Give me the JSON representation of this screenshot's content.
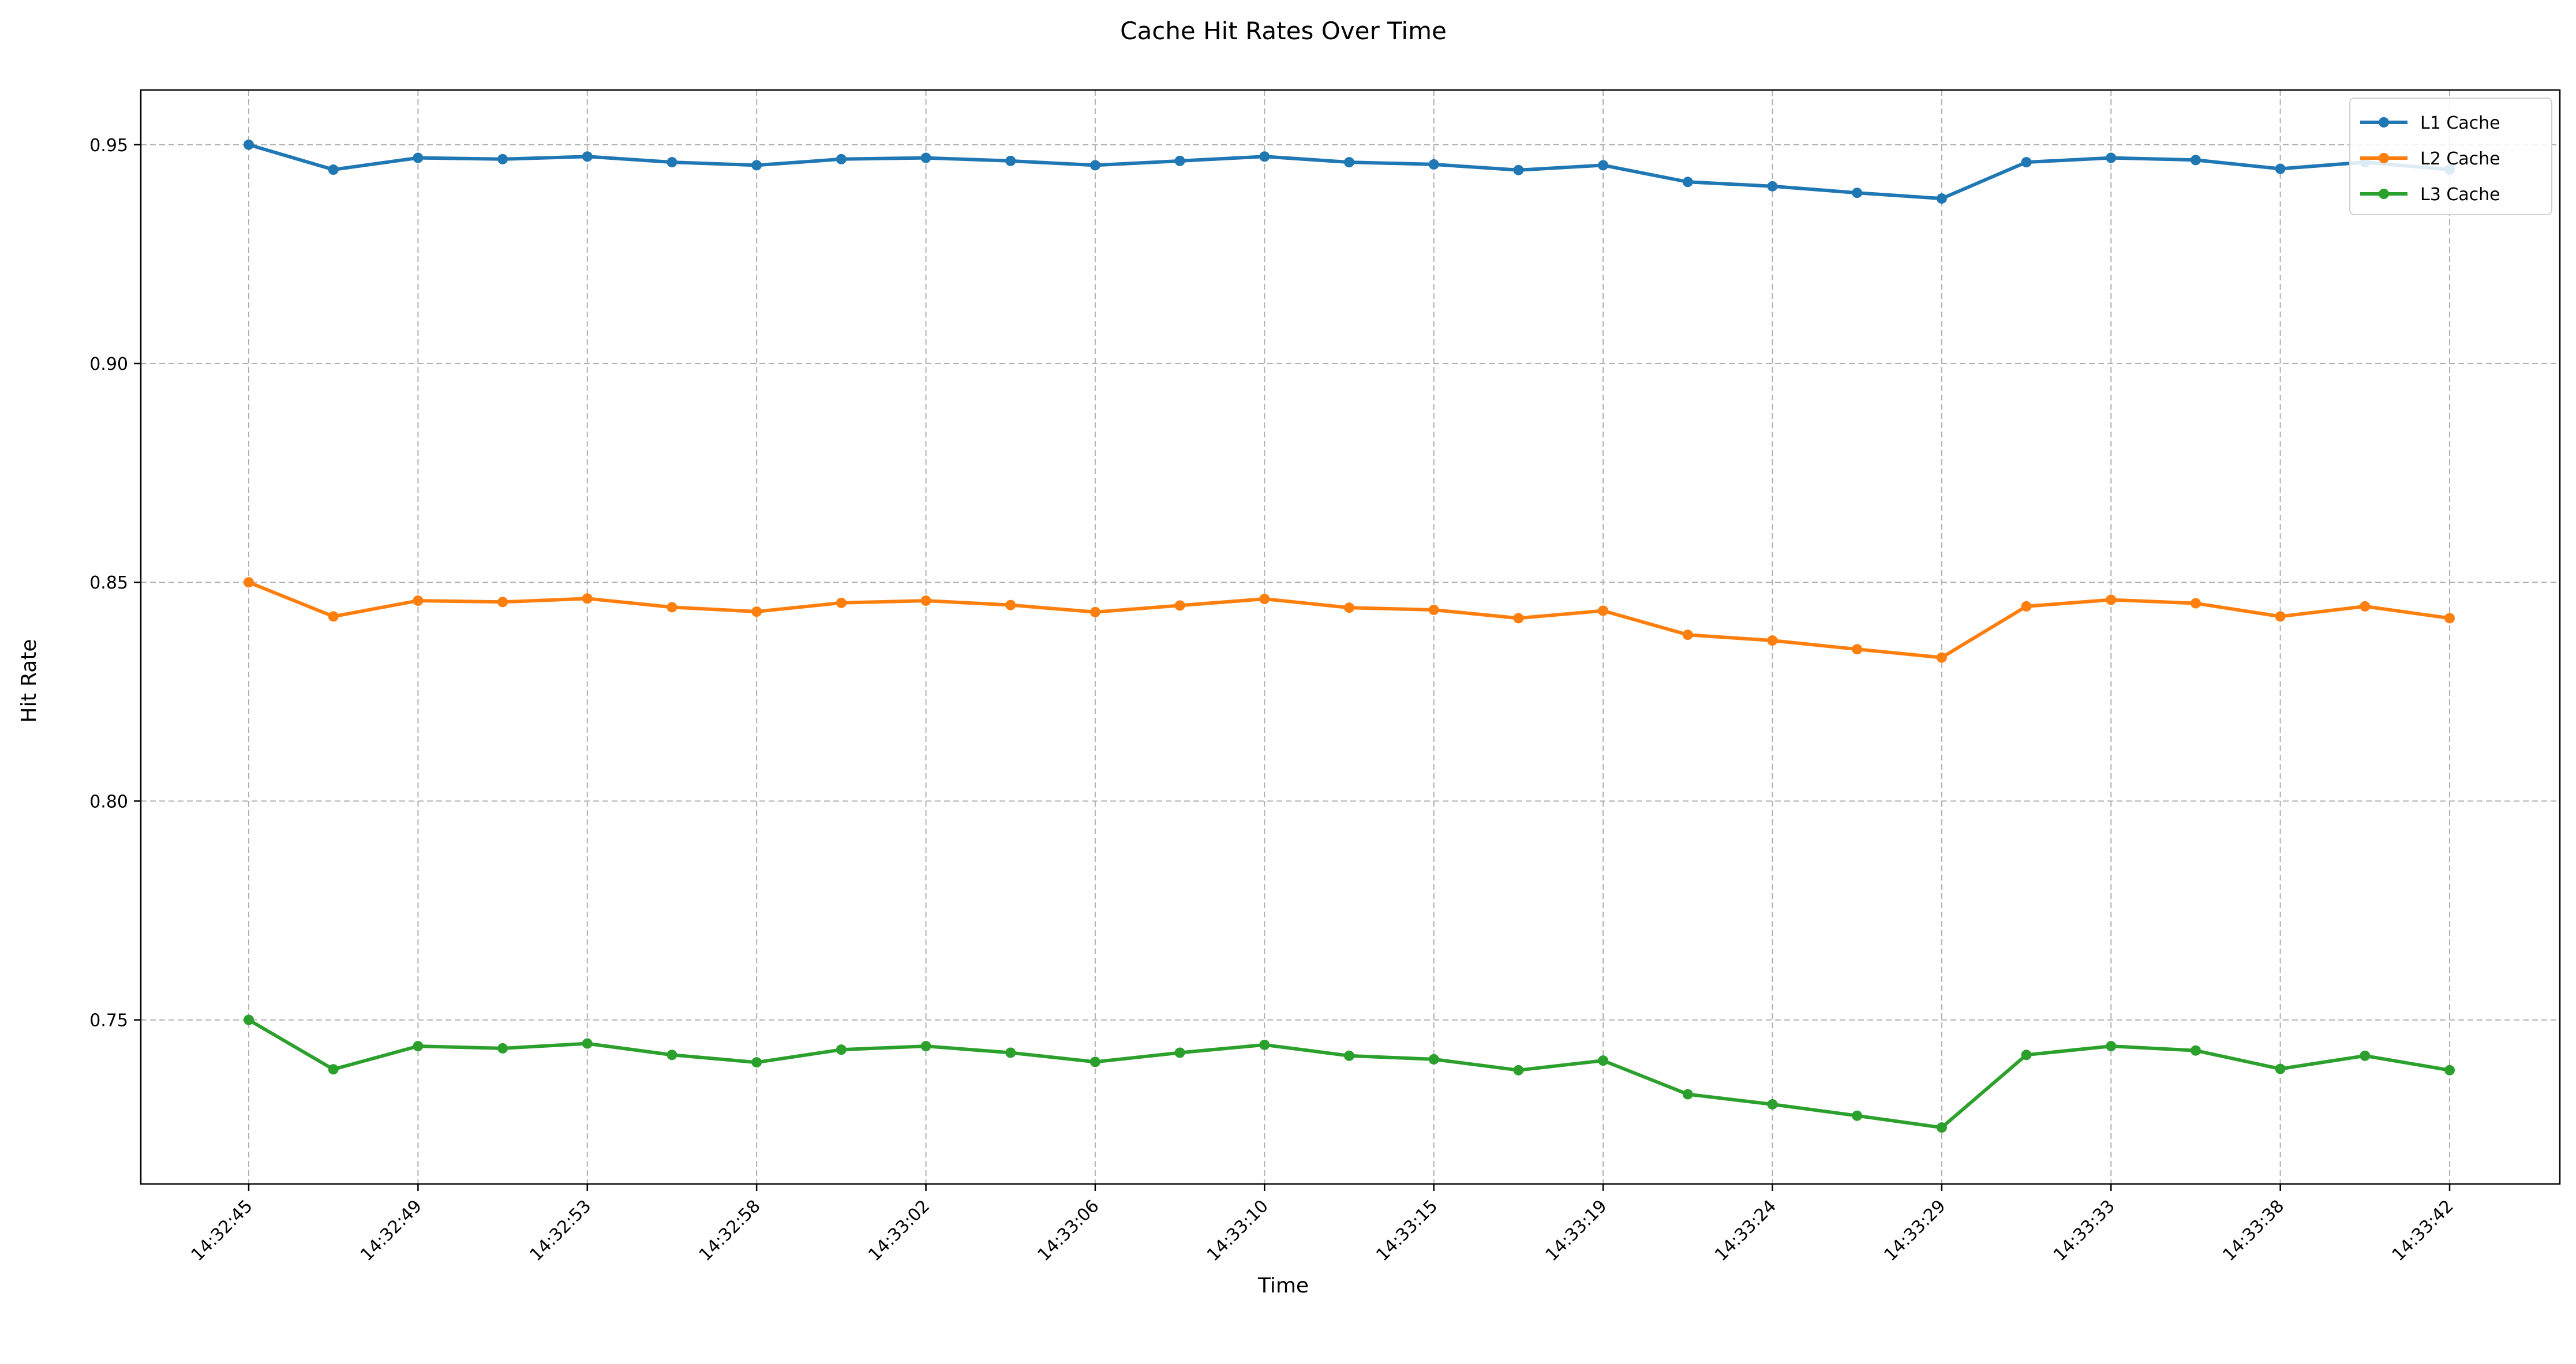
{
  "chart_data": {
    "type": "line",
    "title": "Cache Hit Rates Over Time",
    "xlabel": "Time",
    "ylabel": "Hit Rate",
    "ylim": [
      0.7125,
      0.9625
    ],
    "yticks": [
      0.75,
      0.8,
      0.85,
      0.9,
      0.95
    ],
    "ytick_labels": [
      "0.75",
      "0.80",
      "0.85",
      "0.90",
      "0.95"
    ],
    "xtick_labels": [
      "14:32:45",
      "14:32:49",
      "14:32:53",
      "14:32:58",
      "14:33:02",
      "14:33:06",
      "14:33:10",
      "14:33:15",
      "14:33:19",
      "14:33:24",
      "14:33:29",
      "14:33:33",
      "14:33:38",
      "14:33:42"
    ],
    "grid": true,
    "legend_position": "top-right",
    "series": [
      {
        "name": "L1 Cache",
        "color": "#1f77b4",
        "values": [
          0.95,
          0.9443,
          0.947,
          0.9467,
          0.9473,
          0.946,
          0.9453,
          0.9467,
          0.947,
          0.9463,
          0.9453,
          0.9463,
          0.9473,
          0.946,
          0.9455,
          0.9442,
          0.9453,
          0.9415,
          0.9405,
          0.939,
          0.9377,
          0.946,
          0.947,
          0.9465,
          0.9445,
          0.946,
          0.9443
        ]
      },
      {
        "name": "L2 Cache",
        "color": "#ff7f0e",
        "values": [
          0.85,
          0.8422,
          0.8458,
          0.8455,
          0.8463,
          0.8443,
          0.8433,
          0.8453,
          0.8458,
          0.8448,
          0.8432,
          0.8447,
          0.8462,
          0.8442,
          0.8437,
          0.8418,
          0.8435,
          0.838,
          0.8367,
          0.8347,
          0.8328,
          0.8445,
          0.846,
          0.8452,
          0.8422,
          0.8445,
          0.8418
        ]
      },
      {
        "name": "L3 Cache",
        "color": "#2ca02c",
        "values": [
          0.75,
          0.7387,
          0.744,
          0.7435,
          0.7446,
          0.742,
          0.7403,
          0.7432,
          0.744,
          0.7425,
          0.7404,
          0.7425,
          0.7443,
          0.7418,
          0.741,
          0.7385,
          0.7407,
          0.733,
          0.7307,
          0.7281,
          0.7254,
          0.742,
          0.744,
          0.743,
          0.7388,
          0.7418,
          0.7385
        ]
      }
    ]
  }
}
